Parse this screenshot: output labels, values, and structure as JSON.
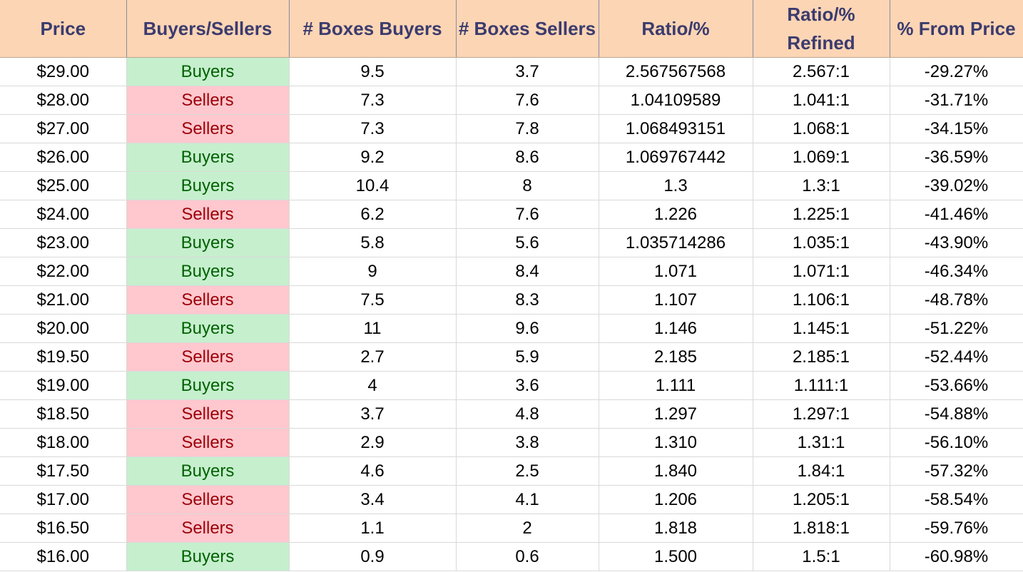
{
  "headers": [
    "Price",
    "Buyers/Sellers",
    "# Boxes Buyers",
    "# Boxes Sellers",
    "Ratio/%",
    "Ratio/%\nRefined",
    "% From Price"
  ],
  "colors": {
    "header_bg": "#fcd5b4",
    "header_text": "#3b3b6e",
    "buyers_bg": "#c6efce",
    "buyers_text": "#006100",
    "sellers_bg": "#ffc7ce",
    "sellers_text": "#9c0006"
  },
  "rows": [
    [
      "$29.00",
      "Buyers",
      "9.5",
      "3.7",
      "2.567567568",
      "2.567:1",
      "-29.27%"
    ],
    [
      "$28.00",
      "Sellers",
      "7.3",
      "7.6",
      "1.04109589",
      "1.041:1",
      "-31.71%"
    ],
    [
      "$27.00",
      "Sellers",
      "7.3",
      "7.8",
      "1.068493151",
      "1.068:1",
      "-34.15%"
    ],
    [
      "$26.00",
      "Buyers",
      "9.2",
      "8.6",
      "1.069767442",
      "1.069:1",
      "-36.59%"
    ],
    [
      "$25.00",
      "Buyers",
      "10.4",
      "8",
      "1.3",
      "1.3:1",
      "-39.02%"
    ],
    [
      "$24.00",
      "Sellers",
      "6.2",
      "7.6",
      "1.226",
      "1.225:1",
      "-41.46%"
    ],
    [
      "$23.00",
      "Buyers",
      "5.8",
      "5.6",
      "1.035714286",
      "1.035:1",
      "-43.90%"
    ],
    [
      "$22.00",
      "Buyers",
      "9",
      "8.4",
      "1.071",
      "1.071:1",
      "-46.34%"
    ],
    [
      "$21.00",
      "Sellers",
      "7.5",
      "8.3",
      "1.107",
      "1.106:1",
      "-48.78%"
    ],
    [
      "$20.00",
      "Buyers",
      "11",
      "9.6",
      "1.146",
      "1.145:1",
      "-51.22%"
    ],
    [
      "$19.50",
      "Sellers",
      "2.7",
      "5.9",
      "2.185",
      "2.185:1",
      "-52.44%"
    ],
    [
      "$19.00",
      "Buyers",
      "4",
      "3.6",
      "1.111",
      "1.111:1",
      "-53.66%"
    ],
    [
      "$18.50",
      "Sellers",
      "3.7",
      "4.8",
      "1.297",
      "1.297:1",
      "-54.88%"
    ],
    [
      "$18.00",
      "Sellers",
      "2.9",
      "3.8",
      "1.310",
      "1.31:1",
      "-56.10%"
    ],
    [
      "$17.50",
      "Buyers",
      "4.6",
      "2.5",
      "1.840",
      "1.84:1",
      "-57.32%"
    ],
    [
      "$17.00",
      "Sellers",
      "3.4",
      "4.1",
      "1.206",
      "1.205:1",
      "-58.54%"
    ],
    [
      "$16.50",
      "Sellers",
      "1.1",
      "2",
      "1.818",
      "1.818:1",
      "-59.76%"
    ],
    [
      "$16.00",
      "Buyers",
      "0.9",
      "0.6",
      "1.500",
      "1.5:1",
      "-60.98%"
    ]
  ]
}
